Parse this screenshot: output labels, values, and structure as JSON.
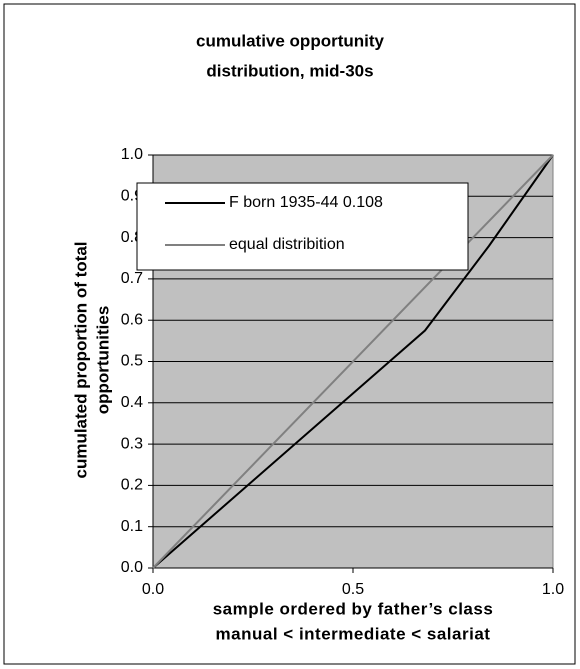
{
  "chart_data": {
    "type": "line",
    "title": [
      "cumulative opportunity",
      "distribution, mid-30s"
    ],
    "x_label": [
      "sample ordered by father’s class",
      "manual < intermediate < salariat"
    ],
    "y_label": [
      "cumulated proportion of total",
      "opportunities"
    ],
    "series": [
      {
        "name": "F born 1935-44 0.108",
        "color": "#000000",
        "x": [
          0,
          0.68,
          0.84,
          1
        ],
        "values": [
          0,
          0.575,
          0.78,
          1
        ]
      },
      {
        "name": "equal distribition",
        "color": "#808080",
        "x": [
          0,
          1
        ],
        "values": [
          0,
          1
        ]
      }
    ],
    "xlim": [
      0,
      1
    ],
    "xticks": [
      {
        "value": 0,
        "label": "0.0"
      },
      0.5,
      {
        "value": 1,
        "label": "1.0"
      }
    ],
    "ylim": [
      0,
      1
    ],
    "yticks": [
      {
        "value": 0,
        "label": "0.0"
      },
      0.1,
      0.2,
      0.3,
      0.4,
      0.5,
      0.6,
      0.7,
      0.8,
      0.9,
      {
        "value": 1,
        "label": "1.0"
      }
    ],
    "grid": true,
    "plot_background": "#c0c0c0",
    "legend": "top-left"
  }
}
